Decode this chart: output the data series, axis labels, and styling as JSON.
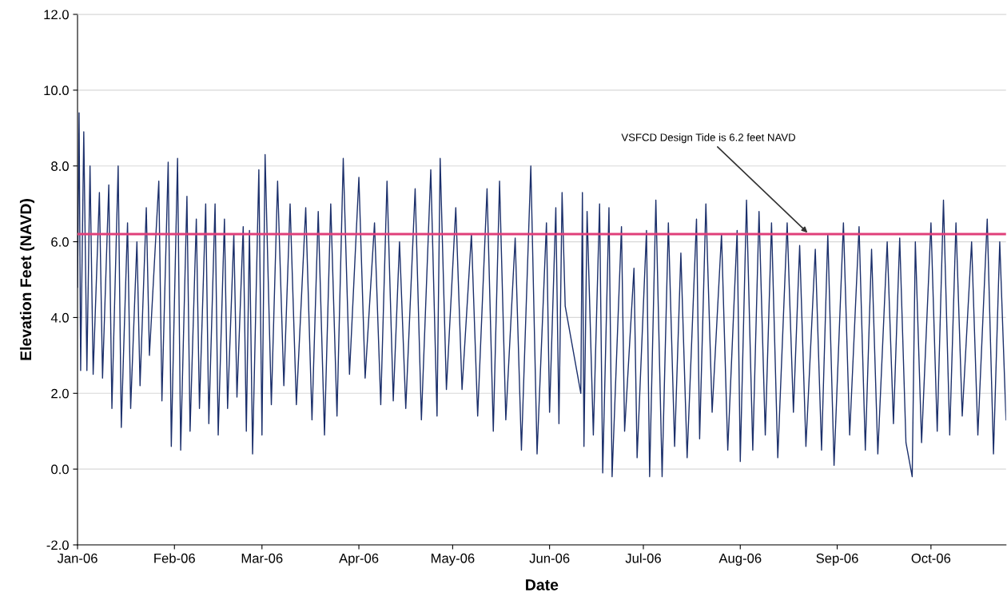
{
  "chart_data": {
    "type": "line",
    "xlabel": "Date",
    "ylabel": "Elevation Feet (NAVD)",
    "x": [
      "2006-01-01",
      "2006-01-01T12:00",
      "2006-01-02",
      "2006-01-03",
      "2006-01-04",
      "2006-01-05",
      "2006-01-06",
      "2006-01-08",
      "2006-01-09",
      "2006-01-11",
      "2006-01-12",
      "2006-01-14",
      "2006-01-15",
      "2006-01-17",
      "2006-01-18",
      "2006-01-20",
      "2006-01-21",
      "2006-01-23",
      "2006-01-24",
      "2006-01-27",
      "2006-01-28",
      "2006-01-30",
      "2006-01-31",
      "2006-02-02",
      "2006-02-03",
      "2006-02-05",
      "2006-02-06",
      "2006-02-08",
      "2006-02-09",
      "2006-02-11",
      "2006-02-12",
      "2006-02-14",
      "2006-02-15",
      "2006-02-17",
      "2006-02-18",
      "2006-02-20",
      "2006-02-21",
      "2006-02-23",
      "2006-02-24",
      "2006-02-25",
      "2006-02-26",
      "2006-02-28",
      "2006-03-01",
      "2006-03-02",
      "2006-03-04",
      "2006-03-06",
      "2006-03-08",
      "2006-03-10",
      "2006-03-12",
      "2006-03-15",
      "2006-03-17",
      "2006-03-19",
      "2006-03-21",
      "2006-03-23",
      "2006-03-25",
      "2006-03-27",
      "2006-03-29",
      "2006-04-01",
      "2006-04-03",
      "2006-04-06",
      "2006-04-08",
      "2006-04-10",
      "2006-04-12",
      "2006-04-14",
      "2006-04-16",
      "2006-04-19",
      "2006-04-21",
      "2006-04-24",
      "2006-04-26",
      "2006-04-27",
      "2006-04-29",
      "2006-05-02",
      "2006-05-04",
      "2006-05-07",
      "2006-05-09",
      "2006-05-12",
      "2006-05-14",
      "2006-05-16",
      "2006-05-18",
      "2006-05-21",
      "2006-05-23",
      "2006-05-26",
      "2006-05-28",
      "2006-05-31",
      "2006-06-01",
      "2006-06-03",
      "2006-06-04",
      "2006-06-05",
      "2006-06-06",
      "2006-06-11",
      "2006-06-11T12:00",
      "2006-06-12",
      "2006-06-13",
      "2006-06-15",
      "2006-06-17",
      "2006-06-18",
      "2006-06-20",
      "2006-06-21",
      "2006-06-24",
      "2006-06-25",
      "2006-06-28",
      "2006-06-29",
      "2006-07-02",
      "2006-07-03",
      "2006-07-05",
      "2006-07-07",
      "2006-07-09",
      "2006-07-11",
      "2006-07-13",
      "2006-07-15",
      "2006-07-18",
      "2006-07-19",
      "2006-07-21",
      "2006-07-23",
      "2006-07-26",
      "2006-07-28",
      "2006-07-31",
      "2006-08-01",
      "2006-08-03",
      "2006-08-05",
      "2006-08-07",
      "2006-08-09",
      "2006-08-11",
      "2006-08-13",
      "2006-08-16",
      "2006-08-18",
      "2006-08-20",
      "2006-08-22",
      "2006-08-25",
      "2006-08-27",
      "2006-08-29",
      "2006-08-31",
      "2006-09-03",
      "2006-09-05",
      "2006-09-08",
      "2006-09-10",
      "2006-09-12",
      "2006-09-14",
      "2006-09-17",
      "2006-09-19",
      "2006-09-21",
      "2006-09-23",
      "2006-09-25",
      "2006-09-26",
      "2006-09-28",
      "2006-10-01",
      "2006-10-03",
      "2006-10-05",
      "2006-10-07",
      "2006-10-09",
      "2006-10-11",
      "2006-10-14",
      "2006-10-16",
      "2006-10-19",
      "2006-10-21",
      "2006-10-23",
      "2006-10-25"
    ],
    "series": [
      {
        "color": "#1b2f6b",
        "values": [
          4.8,
          9.4,
          2.6,
          8.9,
          2.6,
          8.0,
          2.5,
          7.3,
          2.4,
          7.5,
          1.6,
          8.0,
          1.1,
          6.5,
          1.6,
          6.0,
          2.2,
          6.9,
          3.0,
          7.6,
          1.8,
          8.1,
          0.6,
          8.2,
          0.5,
          7.2,
          1.0,
          6.6,
          1.6,
          7.0,
          1.2,
          7.0,
          0.9,
          6.6,
          1.6,
          6.2,
          1.9,
          6.4,
          1.0,
          6.3,
          0.4,
          7.9,
          0.9,
          8.3,
          1.7,
          7.6,
          2.2,
          7.0,
          1.7,
          6.9,
          1.3,
          6.8,
          0.9,
          7.0,
          1.4,
          8.2,
          2.5,
          7.7,
          2.4,
          6.5,
          1.7,
          7.6,
          1.8,
          6.0,
          1.6,
          7.4,
          1.3,
          7.9,
          1.4,
          8.2,
          2.1,
          6.9,
          2.1,
          6.2,
          1.4,
          7.4,
          1.0,
          7.6,
          1.3,
          6.1,
          0.5,
          8.0,
          0.4,
          6.5,
          1.5,
          6.9,
          1.2,
          7.3,
          4.3,
          2.0,
          7.3,
          0.6,
          6.8,
          0.9,
          7.0,
          -0.1,
          6.9,
          -0.2,
          6.4,
          1.0,
          5.3,
          0.3,
          6.3,
          -0.2,
          7.1,
          -0.2,
          6.5,
          0.6,
          5.7,
          0.3,
          6.6,
          0.8,
          7.0,
          1.5,
          6.2,
          0.5,
          6.3,
          0.2,
          7.1,
          0.5,
          6.8,
          0.9,
          6.5,
          0.3,
          6.5,
          1.5,
          5.9,
          0.6,
          5.8,
          0.5,
          6.2,
          0.1,
          6.5,
          0.9,
          6.4,
          0.5,
          5.8,
          0.4,
          6.0,
          1.2,
          6.1,
          0.7,
          -0.2,
          6.0,
          0.7,
          6.5,
          1.0,
          7.1,
          0.9,
          6.5,
          1.4,
          6.0,
          0.9,
          6.6,
          0.4,
          6.0,
          1.3
        ]
      }
    ],
    "xlim": [
      "2006-01-01",
      "2006-10-25"
    ],
    "xticks": [
      {
        "value": "2006-01-01",
        "label": "Jan-06"
      },
      {
        "value": "2006-02-01",
        "label": "Feb-06"
      },
      {
        "value": "2006-03-01",
        "label": "Mar-06"
      },
      {
        "value": "2006-04-01",
        "label": "Apr-06"
      },
      {
        "value": "2006-05-01",
        "label": "May-06"
      },
      {
        "value": "2006-06-01",
        "label": "Jun-06"
      },
      {
        "value": "2006-07-01",
        "label": "Jul-06"
      },
      {
        "value": "2006-08-01",
        "label": "Aug-06"
      },
      {
        "value": "2006-09-01",
        "label": "Sep-06"
      },
      {
        "value": "2006-10-01",
        "label": "Oct-06"
      }
    ],
    "ylim": [
      -2,
      12
    ],
    "yticks": [
      {
        "value": -2,
        "label": "-2.0"
      },
      {
        "value": 0,
        "label": "0.0"
      },
      {
        "value": 2,
        "label": "2.0"
      },
      {
        "value": 4,
        "label": "4.0"
      },
      {
        "value": 6,
        "label": "6.0"
      },
      {
        "value": 8,
        "label": "8.0"
      },
      {
        "value": 10,
        "label": "10.0"
      },
      {
        "value": 12,
        "label": "12.0"
      }
    ],
    "ref_lines": [
      {
        "axis": "y",
        "value": 6.2,
        "color": "#e0407a"
      }
    ],
    "annotations": [
      {
        "text": "VSFCD Design Tide is 6.2 feet NAVD",
        "x": "2006-08-23",
        "y": 6.2
      }
    ],
    "grid": "y",
    "marker": "none",
    "line_style": "solid"
  }
}
